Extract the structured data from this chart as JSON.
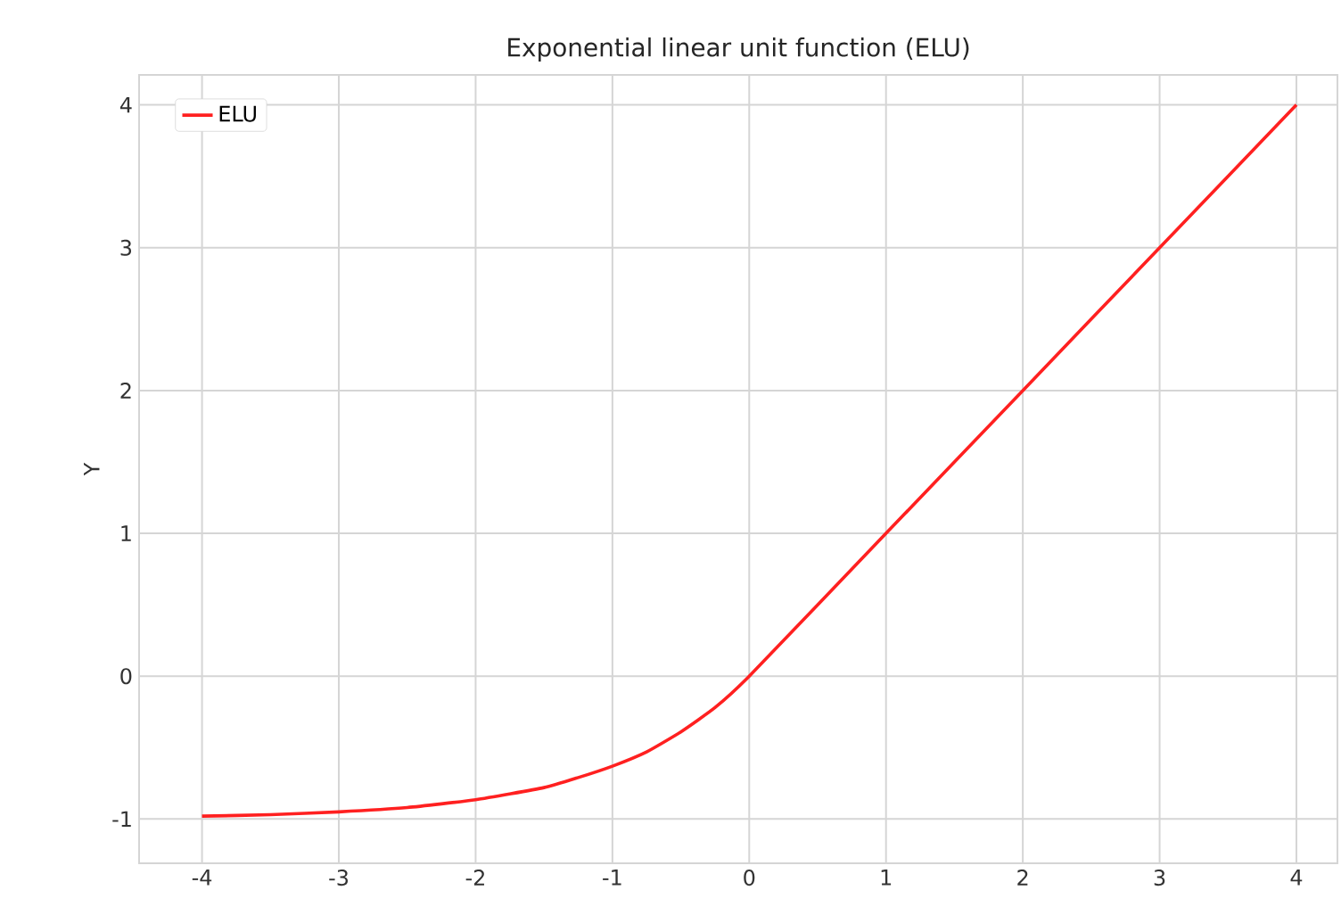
{
  "chart_data": {
    "type": "line",
    "title": "Exponential linear unit function (ELU)",
    "ylabel": "Y",
    "x": [
      -4,
      -3.5,
      -3,
      -2.5,
      -2,
      -1.5,
      -1.25,
      -1,
      -0.75,
      -0.5,
      -0.25,
      0,
      1,
      2,
      3,
      4
    ],
    "series": [
      {
        "name": "ELU",
        "color": "#ff2020",
        "values": [
          -0.98,
          -0.97,
          -0.95,
          -0.92,
          -0.865,
          -0.78,
          -0.71,
          -0.63,
          -0.53,
          -0.39,
          -0.22,
          0,
          1,
          2,
          3,
          4
        ]
      }
    ],
    "xlim": [
      -4.46,
      4.3
    ],
    "ylim": [
      -1.31,
      4.21
    ],
    "xticks": [
      -4,
      -3,
      -2,
      -1,
      0,
      1,
      2,
      3,
      4
    ],
    "yticks": [
      -1,
      0,
      1,
      2,
      3,
      4
    ],
    "grid": true,
    "legend": "top left",
    "marker": "none",
    "line_style": "solid"
  }
}
